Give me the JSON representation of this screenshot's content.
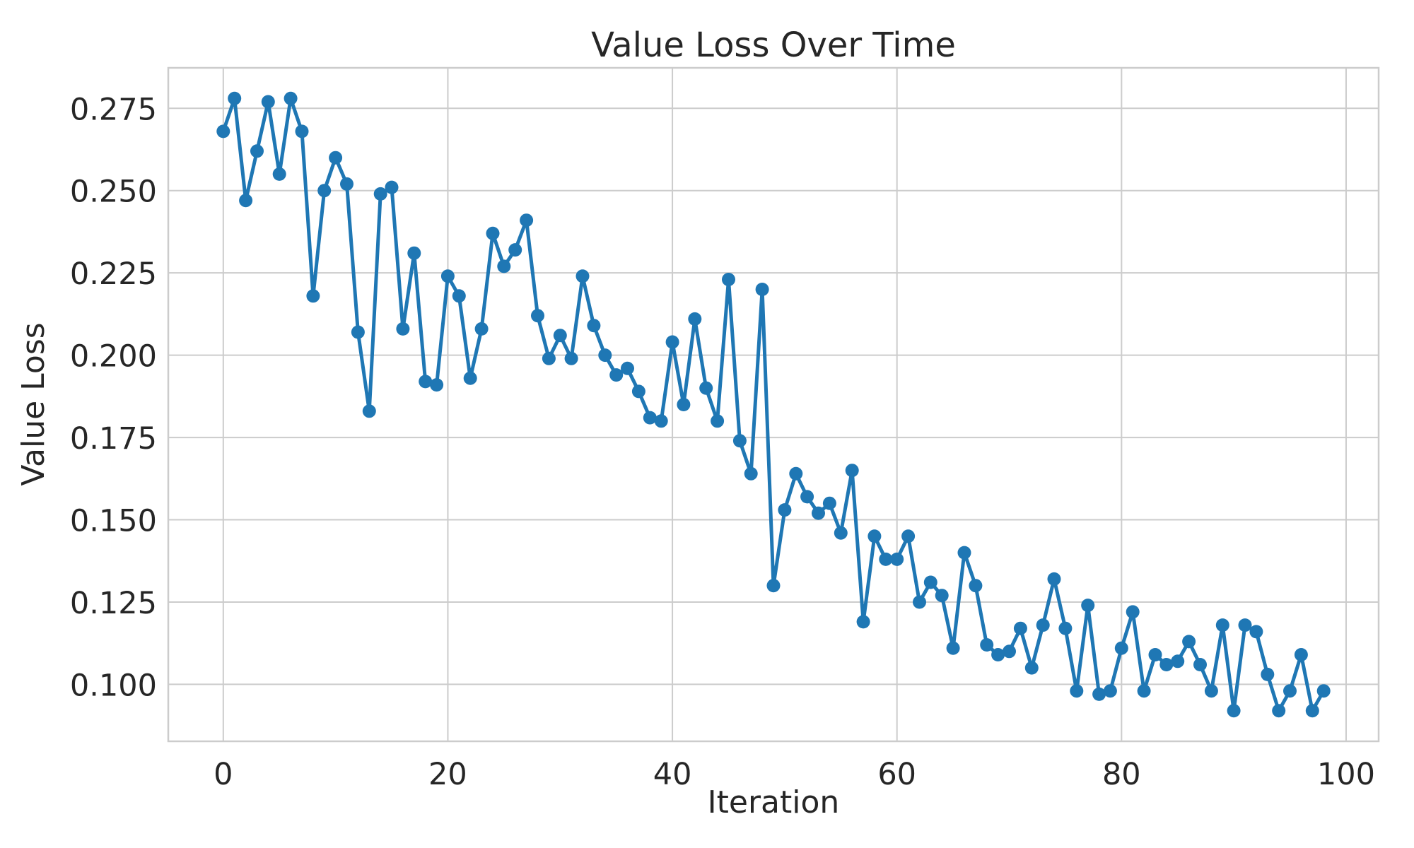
{
  "figure": {
    "background_color": "#ffffff",
    "text_color": "#262626",
    "grid_color": "#cccccc",
    "spine_color": "#cccccc",
    "series_color": "#1f77b4"
  },
  "chart_data": {
    "type": "line",
    "title": "Value Loss Over Time",
    "xlabel": "Iteration",
    "ylabel": "Value Loss",
    "legend": false,
    "grid": true,
    "marker": "circle",
    "xlim": [
      -4.9,
      102.9
    ],
    "ylim": [
      0.0827,
      0.2873
    ],
    "x_ticks": [
      {
        "label": "0",
        "value": 0
      },
      {
        "label": "20",
        "value": 20
      },
      {
        "label": "40",
        "value": 40
      },
      {
        "label": "60",
        "value": 60
      },
      {
        "label": "80",
        "value": 80
      },
      {
        "label": "100",
        "value": 100
      }
    ],
    "y_ticks": [
      {
        "label": "0.100",
        "value": 0.1
      },
      {
        "label": "0.125",
        "value": 0.125
      },
      {
        "label": "0.150",
        "value": 0.15
      },
      {
        "label": "0.175",
        "value": 0.175
      },
      {
        "label": "0.200",
        "value": 0.2
      },
      {
        "label": "0.225",
        "value": 0.225
      },
      {
        "label": "0.250",
        "value": 0.25
      },
      {
        "label": "0.275",
        "value": 0.275
      }
    ],
    "x": [
      0,
      1,
      2,
      3,
      4,
      5,
      6,
      7,
      8,
      9,
      10,
      11,
      12,
      13,
      14,
      15,
      16,
      17,
      18,
      19,
      20,
      21,
      22,
      23,
      24,
      25,
      26,
      27,
      28,
      29,
      30,
      31,
      32,
      33,
      34,
      35,
      36,
      37,
      38,
      39,
      40,
      41,
      42,
      43,
      44,
      45,
      46,
      47,
      48,
      49,
      50,
      51,
      52,
      53,
      54,
      55,
      56,
      57,
      58,
      59,
      60,
      61,
      62,
      63,
      64,
      65,
      66,
      67,
      68,
      69,
      70,
      71,
      72,
      73,
      74,
      75,
      76,
      77,
      78,
      79,
      80,
      81,
      82,
      83,
      84,
      85,
      86,
      87,
      88,
      89,
      90,
      91,
      92,
      93,
      94,
      95,
      96,
      97,
      98
    ],
    "y": [
      0.268,
      0.278,
      0.247,
      0.262,
      0.277,
      0.255,
      0.278,
      0.268,
      0.218,
      0.25,
      0.26,
      0.252,
      0.207,
      0.183,
      0.249,
      0.251,
      0.208,
      0.231,
      0.192,
      0.191,
      0.224,
      0.218,
      0.193,
      0.208,
      0.237,
      0.227,
      0.232,
      0.241,
      0.212,
      0.199,
      0.206,
      0.199,
      0.224,
      0.209,
      0.2,
      0.194,
      0.196,
      0.189,
      0.181,
      0.18,
      0.204,
      0.185,
      0.211,
      0.19,
      0.18,
      0.223,
      0.174,
      0.164,
      0.22,
      0.13,
      0.153,
      0.164,
      0.157,
      0.152,
      0.155,
      0.146,
      0.165,
      0.119,
      0.145,
      0.138,
      0.138,
      0.145,
      0.125,
      0.131,
      0.127,
      0.111,
      0.14,
      0.13,
      0.112,
      0.109,
      0.11,
      0.117,
      0.105,
      0.118,
      0.132,
      0.117,
      0.098,
      0.124,
      0.097,
      0.098,
      0.111,
      0.122,
      0.098,
      0.109,
      0.106,
      0.107,
      0.113,
      0.106,
      0.098,
      0.118,
      0.092,
      0.118,
      0.116,
      0.103,
      0.092,
      0.098,
      0.109,
      0.092,
      0.098
    ]
  }
}
